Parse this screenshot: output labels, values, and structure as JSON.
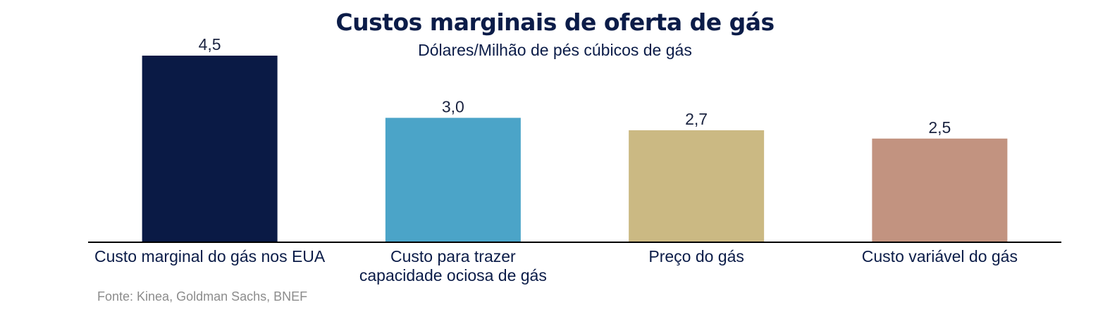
{
  "chart_data": {
    "type": "bar",
    "title": "Custos marginais de oferta de gás",
    "subtitle": "Dólares/Milhão de pés cúbicos de gás",
    "categories": [
      [
        "Custo marginal do gás nos EUA"
      ],
      [
        "Custo para trazer",
        "capacidade ociosa de gás"
      ],
      [
        "Preço do gás"
      ],
      [
        "Custo variável do gás"
      ]
    ],
    "values": [
      4.5,
      3.0,
      2.7,
      2.5
    ],
    "value_labels": [
      "4,5",
      "3,0",
      "2,7",
      "2,5"
    ],
    "colors": [
      "#0a1a45",
      "#4ba4c8",
      "#cbb983",
      "#c29380"
    ],
    "ylim": [
      0,
      4.5
    ],
    "grid": false,
    "legend": "none"
  },
  "source": "Fonte: Kinea, Goldman Sachs, BNEF"
}
